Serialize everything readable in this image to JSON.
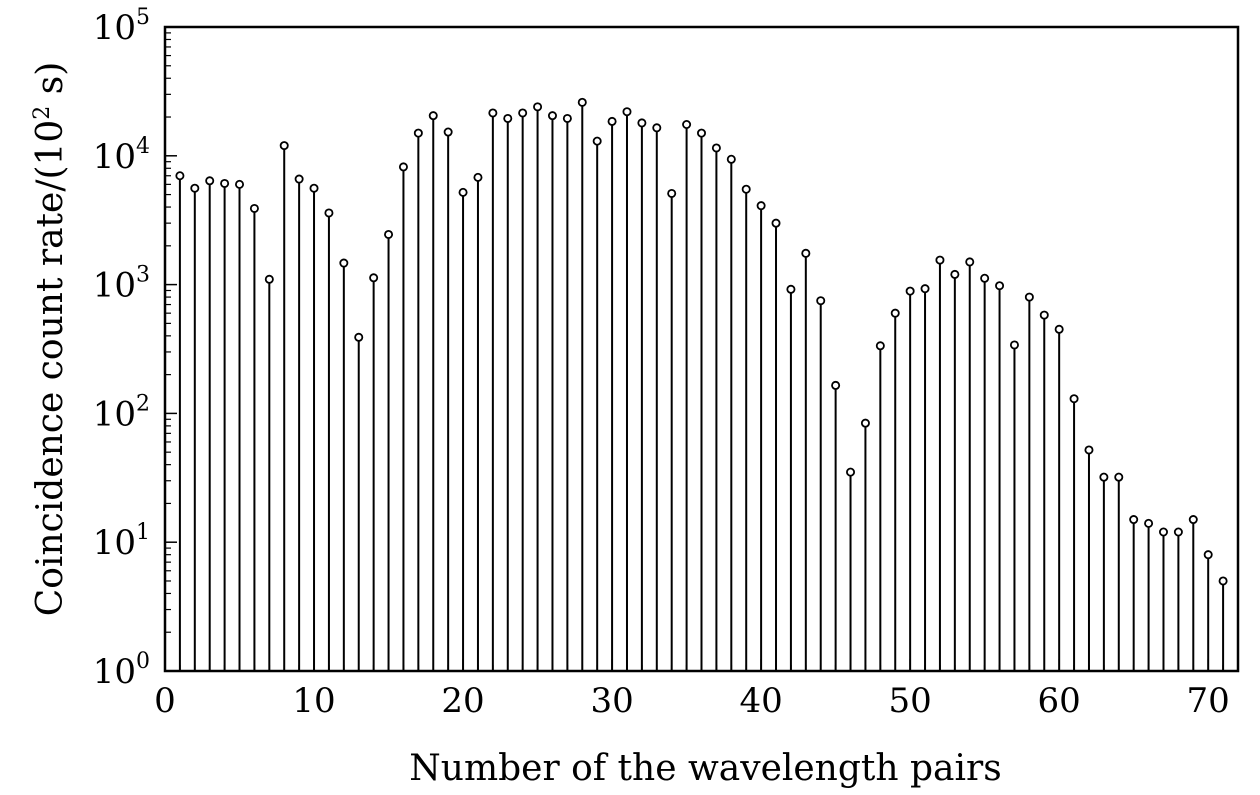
{
  "chart_data": {
    "type": "stem",
    "title": "",
    "xlabel": "Number of the wavelength pairs",
    "ylabel": "Coincidence count rate/(10",
    "ylabel_sup": "2",
    "ylabel_end": " s)",
    "xlim": [
      0,
      72
    ],
    "ylim": [
      1,
      100000
    ],
    "yscale": "log",
    "grid": false,
    "marker": "open-circle",
    "color": "#000000",
    "x_ticks": [
      0,
      10,
      20,
      30,
      40,
      50,
      60,
      70
    ],
    "y_ticks": [
      {
        "base": "10",
        "exp": "0",
        "value": 1
      },
      {
        "base": "10",
        "exp": "1",
        "value": 10
      },
      {
        "base": "10",
        "exp": "2",
        "value": 100
      },
      {
        "base": "10",
        "exp": "3",
        "value": 1000
      },
      {
        "base": "10",
        "exp": "4",
        "value": 10000
      },
      {
        "base": "10",
        "exp": "5",
        "value": 100000
      }
    ],
    "x": [
      1,
      2,
      3,
      4,
      5,
      6,
      7,
      8,
      9,
      10,
      11,
      12,
      13,
      14,
      15,
      16,
      17,
      18,
      19,
      20,
      21,
      22,
      23,
      24,
      25,
      26,
      27,
      28,
      29,
      30,
      31,
      32,
      33,
      34,
      35,
      36,
      37,
      38,
      39,
      40,
      41,
      42,
      43,
      44,
      45,
      46,
      47,
      48,
      49,
      50,
      51,
      52,
      53,
      54,
      55,
      56,
      57,
      58,
      59,
      60,
      61,
      62,
      63,
      64,
      65,
      66,
      67,
      68,
      69,
      70,
      71
    ],
    "values": [
      7000,
      5600,
      6400,
      6100,
      6000,
      3900,
      1100,
      12000,
      6600,
      5600,
      3600,
      1470,
      390,
      1130,
      2450,
      8200,
      15000,
      20500,
      15300,
      5200,
      6800,
      21500,
      19500,
      21500,
      24000,
      20500,
      19500,
      26000,
      13000,
      18500,
      22000,
      18000,
      16500,
      5100,
      17500,
      15000,
      11500,
      9400,
      5500,
      4100,
      3000,
      920,
      1750,
      750,
      165,
      35,
      84,
      335,
      600,
      890,
      930,
      1550,
      1200,
      1500,
      1120,
      980,
      340,
      800,
      580,
      450,
      130,
      52,
      32,
      32,
      15,
      14,
      12,
      12,
      15,
      8,
      5
    ]
  }
}
